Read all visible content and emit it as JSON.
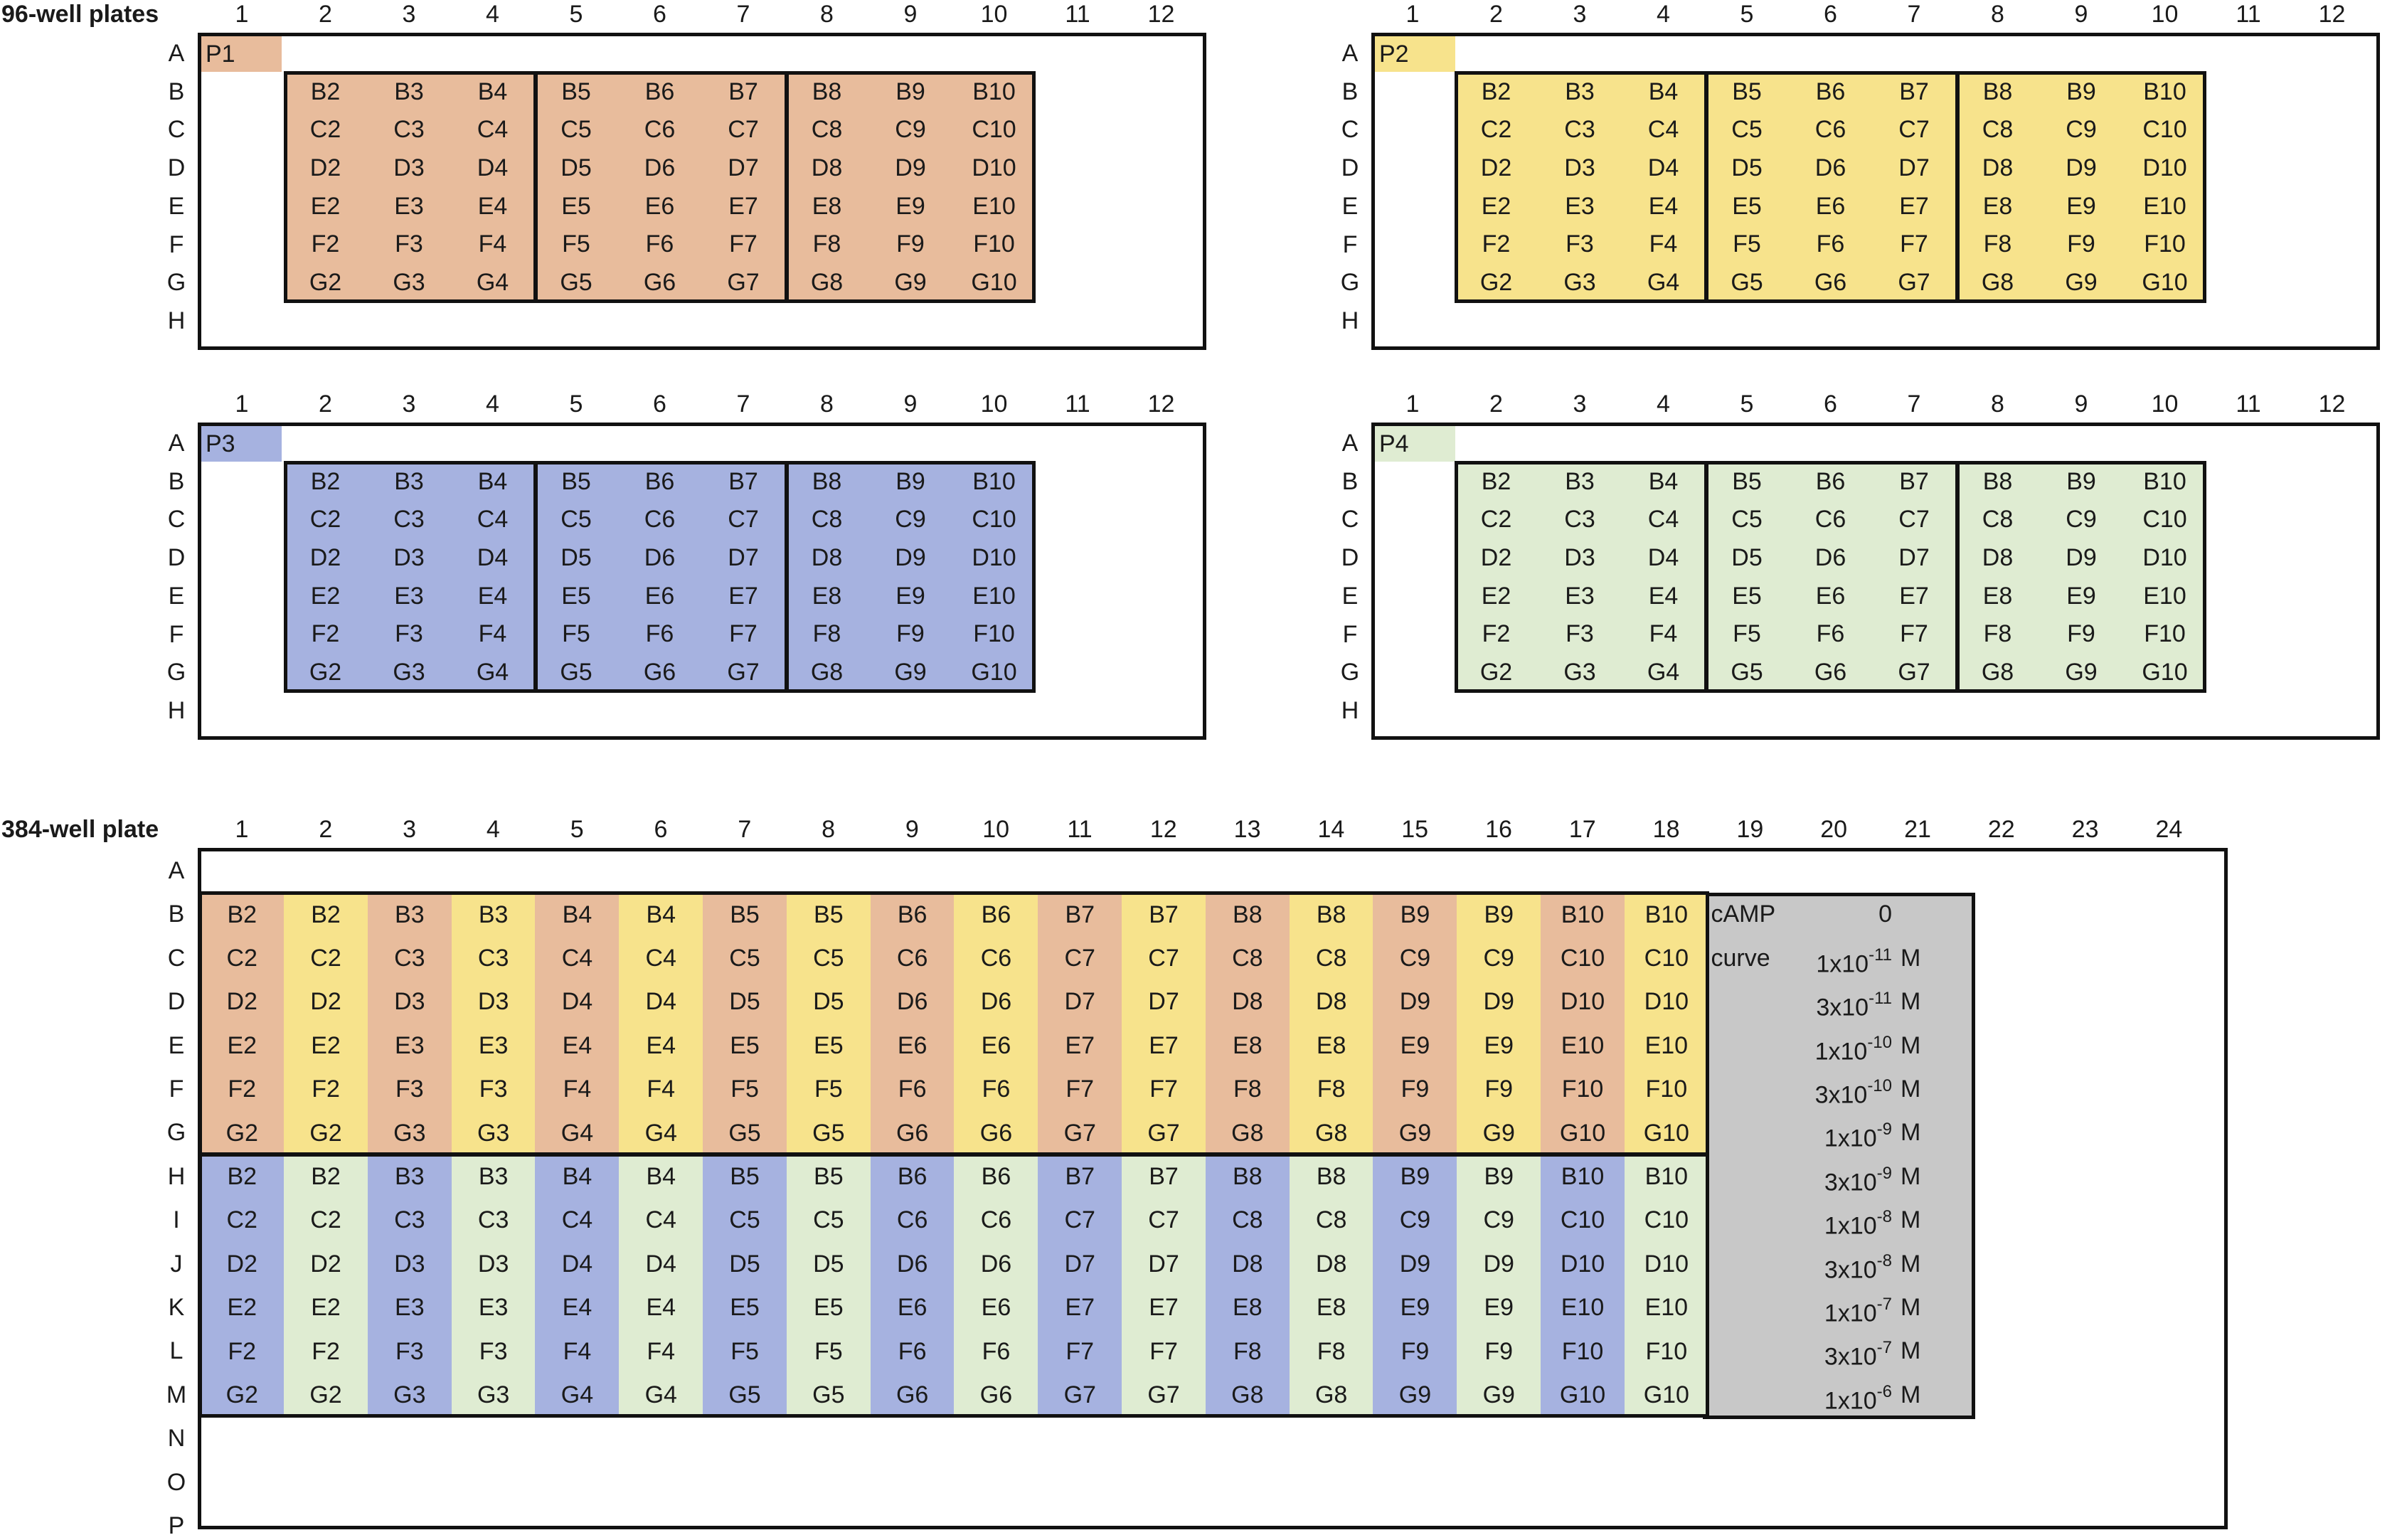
{
  "titles": {
    "plates96": "96-well plates",
    "plate384": "384-well plate"
  },
  "colors": {
    "P1": "#e8bc9c",
    "P2": "#f7e38c",
    "P3": "#a6b2e0",
    "P4": "#dfecd2",
    "curve": "#c8c8c8",
    "outline": "#111111"
  },
  "plates96": [
    {
      "id": "P1",
      "label": "P1",
      "color_key": "P1"
    },
    {
      "id": "P2",
      "label": "P2",
      "color_key": "P2"
    },
    {
      "id": "P3",
      "label": "P3",
      "color_key": "P3"
    },
    {
      "id": "P4",
      "label": "P4",
      "color_key": "P4"
    }
  ],
  "plate96_columns": [
    "1",
    "2",
    "3",
    "4",
    "5",
    "6",
    "7",
    "8",
    "9",
    "10",
    "11",
    "12"
  ],
  "plate96_rows": [
    "A",
    "B",
    "C",
    "D",
    "E",
    "F",
    "G",
    "H"
  ],
  "sample_rows": [
    "B",
    "C",
    "D",
    "E",
    "F",
    "G"
  ],
  "sample_cols": [
    "2",
    "3",
    "4",
    "5",
    "6",
    "7",
    "8",
    "9",
    "10"
  ],
  "plate384_columns": [
    "1",
    "2",
    "3",
    "4",
    "5",
    "6",
    "7",
    "8",
    "9",
    "10",
    "11",
    "12",
    "13",
    "14",
    "15",
    "16",
    "17",
    "18",
    "19",
    "20",
    "21",
    "22",
    "23",
    "24"
  ],
  "plate384_rows": [
    "A",
    "B",
    "C",
    "D",
    "E",
    "F",
    "G",
    "H",
    "I",
    "J",
    "K",
    "L",
    "M",
    "N",
    "O",
    "P"
  ],
  "camp_curve": {
    "label1": "cAMP",
    "label2": "curve",
    "unit": "M",
    "points": [
      {
        "value": "0",
        "unit": ""
      },
      {
        "value": "1x10",
        "exp": "-11",
        "unit": "M"
      },
      {
        "value": "3x10",
        "exp": "-11",
        "unit": "M"
      },
      {
        "value": "1x10",
        "exp": "-10",
        "unit": "M"
      },
      {
        "value": "3x10",
        "exp": "-10",
        "unit": "M"
      },
      {
        "value": "1x10",
        "exp": "-9",
        "unit": "M"
      },
      {
        "value": "3x10",
        "exp": "-9",
        "unit": "M"
      },
      {
        "value": "1x10",
        "exp": "-8",
        "unit": "M"
      },
      {
        "value": "3x10",
        "exp": "-8",
        "unit": "M"
      },
      {
        "value": "1x10",
        "exp": "-7",
        "unit": "M"
      },
      {
        "value": "3x10",
        "exp": "-7",
        "unit": "M"
      },
      {
        "value": "1x10",
        "exp": "-6",
        "unit": "M"
      }
    ]
  }
}
